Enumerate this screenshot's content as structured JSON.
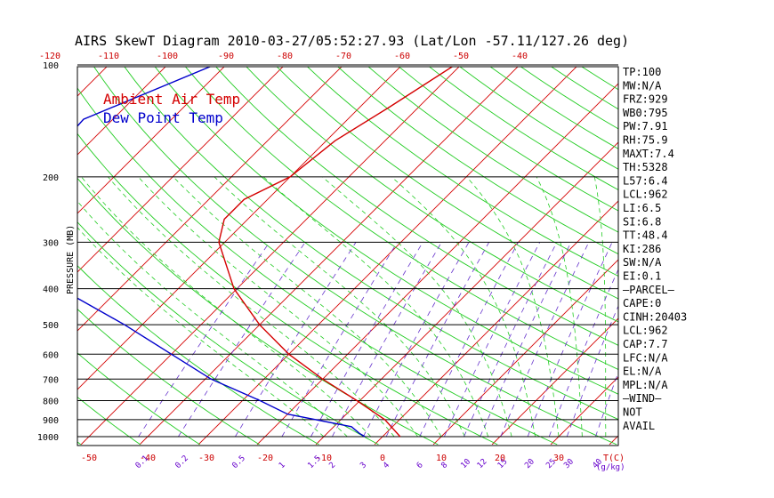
{
  "chart_data": {
    "type": "line",
    "title": "AIRS SkewT Diagram 2010-03-27/05:52:27.93 (Lat/Lon -57.11/127.26 deg)",
    "ylabel": "PRESSURE (MB)",
    "xlabel_bottom_unit": "T(C)",
    "mixing_unit": "(g/kg)",
    "pressure_ticks": [
      "100",
      "200",
      "300",
      "400",
      "500",
      "600",
      "700",
      "800",
      "900",
      "1000"
    ],
    "temp_ticks_top": [
      "-120",
      "-110",
      "-100",
      "-90",
      "-80",
      "-70",
      "-60",
      "-50",
      "-40"
    ],
    "temp_ticks_bottom": [
      "-50",
      "-40",
      "-30",
      "-20",
      "-10",
      "0",
      "10",
      "20",
      "30"
    ],
    "mixing_labels": [
      "0.1",
      "0.2",
      "0.5",
      "1",
      "1.5",
      "2",
      "3",
      "4",
      "6",
      "8",
      "10",
      "12",
      "15",
      "20",
      "25",
      "30",
      "40"
    ],
    "legend": [
      {
        "name": "Ambient Air Temp",
        "color": "#d40000"
      },
      {
        "name": "Dew Point Temp",
        "color": "#0000cc"
      }
    ],
    "series": [
      {
        "name": "Ambient Air Temp",
        "color": "#d40000",
        "points": [
          {
            "p": 100,
            "t": -51
          },
          {
            "p": 130,
            "t": -55
          },
          {
            "p": 160,
            "t": -58.5
          },
          {
            "p": 200,
            "t": -60
          },
          {
            "p": 230,
            "t": -64
          },
          {
            "p": 260,
            "t": -64
          },
          {
            "p": 300,
            "t": -61
          },
          {
            "p": 400,
            "t": -50.5
          },
          {
            "p": 500,
            "t": -40
          },
          {
            "p": 600,
            "t": -30
          },
          {
            "p": 700,
            "t": -20
          },
          {
            "p": 800,
            "t": -10.5
          },
          {
            "p": 900,
            "t": -2.5
          },
          {
            "p": 1000,
            "t": 3
          }
        ]
      },
      {
        "name": "Dew Point Temp",
        "color": "#0000cc",
        "points": [
          {
            "p": 100,
            "t": -92
          },
          {
            "p": 140,
            "t": -105
          },
          {
            "p": 200,
            "t": -104
          },
          {
            "p": 300,
            "t": -92
          },
          {
            "p": 400,
            "t": -80
          },
          {
            "p": 500,
            "t": -63
          },
          {
            "p": 600,
            "t": -50
          },
          {
            "p": 700,
            "t": -39
          },
          {
            "p": 800,
            "t": -27
          },
          {
            "p": 870,
            "t": -20
          },
          {
            "p": 940,
            "t": -7
          },
          {
            "p": 980,
            "t": -4.5
          },
          {
            "p": 1000,
            "t": -3
          }
        ]
      }
    ],
    "side_panel": [
      "TP:100",
      "MW:N/A",
      "FRZ:929",
      "WB0:795",
      "PW:7.91",
      "RH:75.9",
      "MAXT:7.4",
      "TH:5328",
      "L57:6.4",
      "LCL:962",
      "LI:6.5",
      "SI:6.8",
      "TT:48.4",
      "KI:286",
      "SW:N/A",
      "EI:0.1",
      "–PARCEL–",
      "CAPE:0",
      "CINH:20403",
      "LCL:962",
      "CAP:7.7",
      "LFC:N/A",
      "EL:N/A",
      "MPL:N/A",
      "–WIND–",
      "NOT",
      "AVAIL"
    ],
    "colors": {
      "isotherm": "#d40000",
      "dry_adiabat": "#22cc22",
      "moist_adiabat": "#22cc22",
      "mixing_ratio": "#6633cc",
      "isobar": "#000000",
      "frame": "#000000"
    }
  }
}
